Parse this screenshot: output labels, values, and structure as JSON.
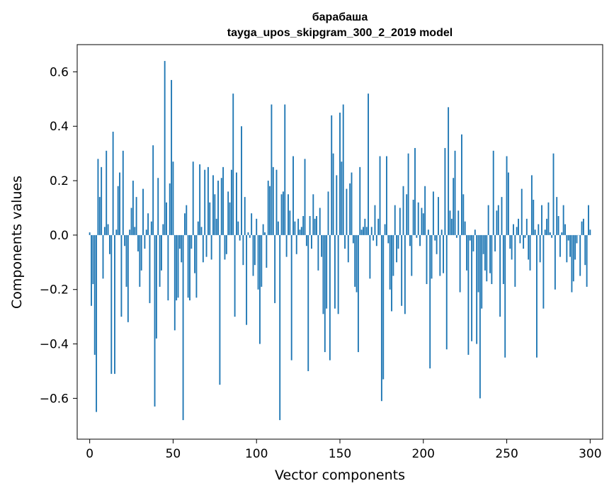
{
  "chart_data": {
    "type": "bar",
    "title": "барабаша",
    "subtitle": "tayga_upos_skipgram_300_2_2019 model",
    "xlabel": "Vector components",
    "ylabel": "Components values",
    "xlim": [
      -7.5,
      307.5
    ],
    "ylim": [
      -0.75,
      0.7
    ],
    "xticks": [
      0,
      50,
      100,
      150,
      200,
      250,
      300
    ],
    "yticks": [
      -0.6,
      -0.4,
      -0.2,
      0.0,
      0.2,
      0.4,
      0.6
    ],
    "ytick_labels": [
      "−0.6",
      "−0.4",
      "−0.2",
      "0.0",
      "0.2",
      "0.4",
      "0.6"
    ],
    "bar_color": "#1f77b4",
    "values": [
      0.01,
      -0.26,
      -0.18,
      -0.44,
      -0.65,
      0.28,
      0.14,
      0.25,
      -0.16,
      0.03,
      0.31,
      0.04,
      -0.07,
      -0.51,
      0.38,
      -0.51,
      0.02,
      0.18,
      0.23,
      -0.3,
      0.31,
      -0.04,
      -0.19,
      -0.32,
      0.02,
      0.1,
      0.2,
      0.03,
      0.14,
      -0.06,
      -0.19,
      -0.13,
      0.17,
      -0.05,
      0.02,
      0.08,
      -0.25,
      0.05,
      0.33,
      -0.63,
      -0.38,
      0.21,
      -0.19,
      -0.13,
      0.04,
      0.64,
      0.12,
      -0.24,
      0.19,
      0.57,
      0.27,
      -0.35,
      -0.24,
      -0.23,
      -0.05,
      -0.1,
      -0.68,
      0.08,
      0.11,
      -0.23,
      -0.24,
      -0.05,
      0.27,
      -0.14,
      -0.23,
      0.05,
      0.26,
      0.03,
      -0.1,
      0.24,
      -0.08,
      0.25,
      0.12,
      -0.09,
      0.22,
      0.15,
      0.06,
      0.2,
      -0.55,
      0.21,
      0.25,
      -0.09,
      -0.07,
      0.16,
      0.12,
      0.24,
      0.52,
      -0.3,
      0.23,
      0.05,
      -0.02,
      0.4,
      -0.11,
      0.14,
      -0.33,
      0.01,
      -0.01,
      0.08,
      -0.15,
      -0.11,
      0.06,
      -0.2,
      -0.4,
      -0.19,
      0.04,
      0.01,
      -0.12,
      0.2,
      0.18,
      0.48,
      0.25,
      -0.25,
      0.24,
      0.05,
      -0.68,
      0.15,
      0.16,
      0.48,
      -0.08,
      0.15,
      0.09,
      -0.46,
      0.29,
      0.05,
      -0.07,
      0.06,
      0.02,
      0.03,
      0.07,
      0.28,
      -0.04,
      -0.5,
      0.07,
      -0.05,
      0.15,
      0.06,
      0.07,
      -0.13,
      0.1,
      -0.08,
      -0.29,
      -0.43,
      -0.27,
      0.16,
      -0.46,
      0.44,
      0.3,
      -0.27,
      0.22,
      -0.29,
      0.45,
      0.27,
      0.48,
      -0.05,
      0.17,
      -0.1,
      0.19,
      0.23,
      -0.03,
      -0.19,
      -0.21,
      -0.43,
      0.25,
      0.02,
      0.03,
      0.06,
      0.03,
      0.52,
      -0.16,
      0.03,
      -0.02,
      0.11,
      -0.04,
      0.06,
      0.29,
      -0.61,
      -0.53,
      0.04,
      0.29,
      -0.03,
      -0.2,
      -0.28,
      -0.15,
      0.11,
      -0.1,
      -0.05,
      0.1,
      -0.26,
      0.18,
      -0.29,
      0.15,
      0.3,
      -0.04,
      -0.15,
      0.13,
      0.32,
      -0.01,
      0.12,
      -0.04,
      0.1,
      0.08,
      0.18,
      -0.18,
      0.02,
      -0.49,
      -0.16,
      0.16,
      -0.02,
      -0.07,
      0.14,
      -0.15,
      0.02,
      -0.14,
      0.32,
      -0.42,
      0.47,
      0.09,
      0.06,
      0.21,
      0.31,
      -0.01,
      0.09,
      -0.21,
      0.37,
      0.15,
      0.05,
      -0.13,
      -0.44,
      -0.02,
      -0.39,
      -0.06,
      0.02,
      -0.4,
      -0.21,
      -0.6,
      -0.27,
      -0.07,
      -0.13,
      -0.17,
      0.11,
      -0.14,
      -0.18,
      0.31,
      -0.06,
      0.09,
      0.11,
      -0.3,
      0.14,
      -0.18,
      -0.45,
      0.29,
      0.23,
      -0.05,
      -0.09,
      0.04,
      -0.19,
      0.03,
      0.06,
      -0.03,
      0.17,
      -0.05,
      -0.01,
      0.06,
      -0.09,
      -0.13,
      0.22,
      0.13,
      0.02,
      -0.45,
      0.04,
      -0.1,
      0.11,
      -0.27,
      0.02,
      0.06,
      0.12,
      0.01,
      -0.01,
      0.3,
      -0.2,
      0.14,
      0.07,
      -0.08,
      0.01,
      0.11,
      0.04,
      -0.1,
      -0.02,
      -0.08,
      -0.21,
      -0.17,
      -0.09,
      -0.03,
      0.0,
      -0.15,
      0.05,
      0.06,
      -0.11,
      -0.19,
      0.11,
      0.02
    ]
  }
}
